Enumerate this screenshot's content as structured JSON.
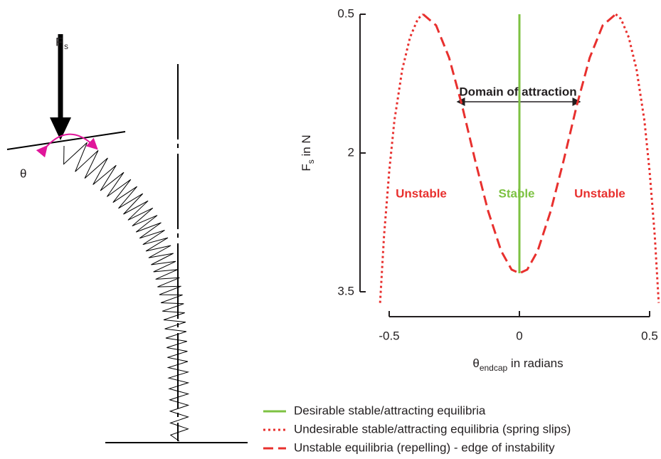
{
  "diagram": {
    "force_label": "F",
    "force_subscript": "s",
    "angle_label": "θ"
  },
  "chart_data": {
    "type": "line",
    "xlabel": {
      "main": "θ",
      "subscript": "endcap",
      "rest": " in radians"
    },
    "ylabel": {
      "main": "F",
      "subscript": "s",
      "rest": " in N"
    },
    "xlim": [
      -0.54,
      0.54
    ],
    "ylim": [
      3.65,
      0.5
    ],
    "xticks": [
      -0.5,
      0,
      0.5
    ],
    "yticks": [
      0.5,
      2,
      3.5
    ],
    "annotations": [
      "Domain of attraction",
      "Unstable",
      "Stable",
      "Unstable"
    ],
    "series": [
      {
        "name": "Desirable stable/attracting equilibria",
        "color": "#7dc242",
        "style": "solid",
        "x": [
          0,
          0
        ],
        "values": [
          0.5,
          3.3
        ]
      },
      {
        "name": "Undesirable stable/attracting equilibria (spring slips)",
        "color": "#e8302e",
        "style": "dotted",
        "x": [
          -0.535,
          -0.52,
          -0.5,
          -0.48,
          -0.45,
          -0.42,
          -0.39,
          -0.37,
          null,
          0.37,
          0.39,
          0.42,
          0.45,
          0.48,
          0.5,
          0.52,
          0.535
        ],
        "values": [
          3.62,
          2.9,
          2.2,
          1.65,
          1.1,
          0.75,
          0.55,
          0.5,
          null,
          0.5,
          0.55,
          0.75,
          1.1,
          1.65,
          2.2,
          2.9,
          3.62
        ]
      },
      {
        "name": "Unstable equilibria (repelling) - edge of instability",
        "color": "#e8302e",
        "style": "dashed",
        "x": [
          -0.37,
          -0.32,
          -0.27,
          -0.22,
          -0.17,
          -0.12,
          -0.07,
          -0.03,
          0,
          0.03,
          0.07,
          0.12,
          0.17,
          0.22,
          0.27,
          0.32,
          0.37
        ],
        "values": [
          0.5,
          0.62,
          0.97,
          1.49,
          2.08,
          2.63,
          3.06,
          3.26,
          3.3,
          3.26,
          3.06,
          2.63,
          2.08,
          1.49,
          0.97,
          0.62,
          0.5
        ]
      }
    ]
  }
}
